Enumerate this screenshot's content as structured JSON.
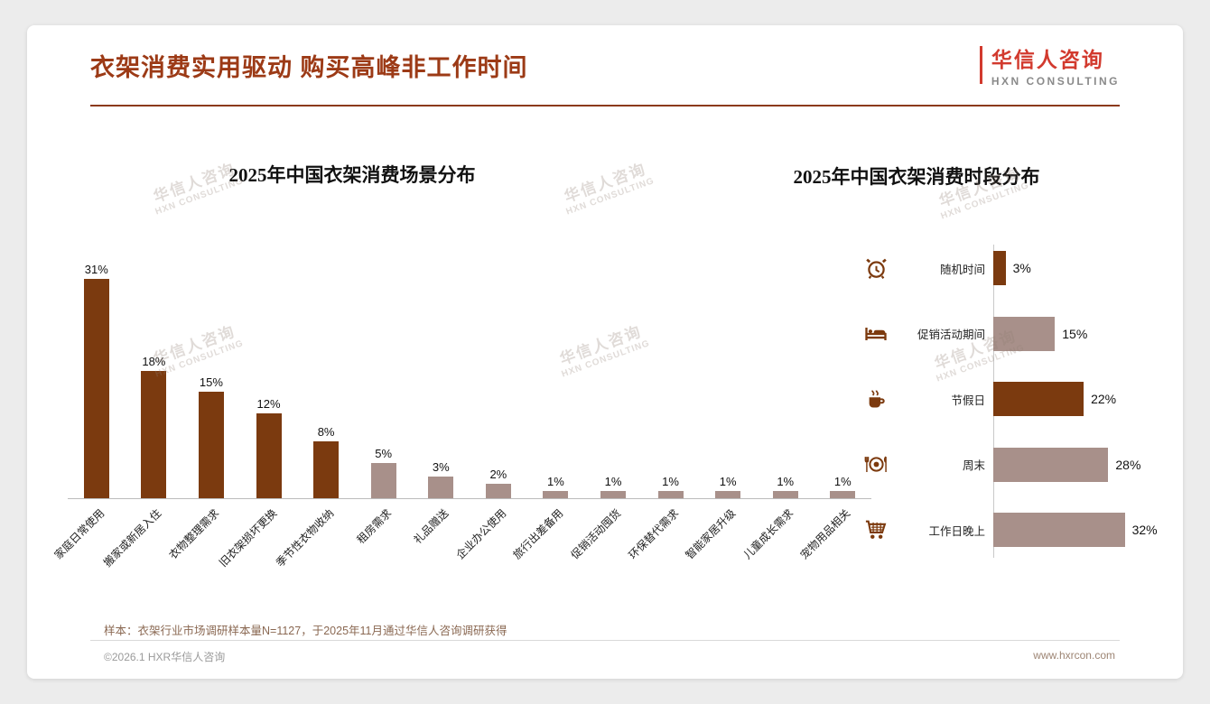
{
  "page": {
    "title": "衣架消费实用驱动 购买高峰非工作时间",
    "logo_title": "华信人咨询",
    "logo_subtitle": "HXN CONSULTING",
    "watermark": {
      "line1": "华信人咨询",
      "line2": "HXN CONSULTING"
    },
    "note": "样本：衣架行业市场调研样本量N=1127，于2025年11月通过华信人咨询调研获得",
    "footer_left": "©2026.1 HXR华信人咨询",
    "footer_right": "www.hxrcon.com"
  },
  "colors": {
    "title": "#9C3A16",
    "dark_bar": "#7B3A0F",
    "light_bar": "#A8908A",
    "logo_red": "#D23A2E",
    "icon_brown": "#7C3A0E"
  },
  "chart_data": [
    {
      "type": "bar",
      "orientation": "vertical",
      "title": "2025年中国衣架消费场景分布",
      "categories": [
        "家庭日常使用",
        "搬家或新居入住",
        "衣物整理需求",
        "旧衣架损坏更换",
        "季节性衣物收纳",
        "租房需求",
        "礼品赠送",
        "企业办公使用",
        "旅行出差备用",
        "促销活动囤货",
        "环保替代需求",
        "智能家居升级",
        "儿童成长需求",
        "宠物用品相关"
      ],
      "values": [
        31,
        18,
        15,
        12,
        8,
        5,
        3,
        2,
        1,
        1,
        1,
        1,
        1,
        1
      ],
      "bar_colors": [
        "dark",
        "dark",
        "dark",
        "dark",
        "dark",
        "light",
        "light",
        "light",
        "light",
        "light",
        "light",
        "light",
        "light",
        "light"
      ],
      "value_suffix": "%",
      "xlabel": "",
      "ylabel": "",
      "grid": false,
      "legend": false
    },
    {
      "type": "bar",
      "orientation": "horizontal",
      "title": "2025年中国衣架消费时段分布",
      "categories": [
        "随机时间",
        "促销活动期间",
        "节假日",
        "周末",
        "工作日晚上"
      ],
      "values": [
        3,
        15,
        22,
        28,
        32
      ],
      "bar_colors": [
        "dark",
        "light",
        "dark",
        "light",
        "light"
      ],
      "icons": [
        "alarm-clock",
        "bed",
        "coffee",
        "dinner-plate",
        "shopping-cart"
      ],
      "value_suffix": "%",
      "xlabel": "",
      "ylabel": "",
      "grid": false,
      "legend": false
    }
  ]
}
